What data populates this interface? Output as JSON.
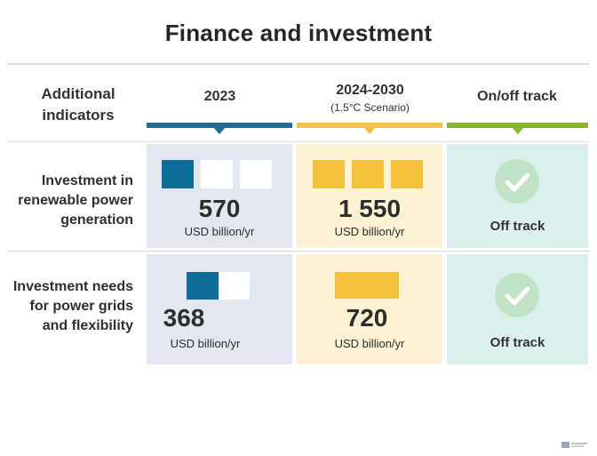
{
  "title": "Finance and investment",
  "headers": {
    "indicators": "Additional indicators",
    "col_2023": "2023",
    "col_2030": "2024-2030",
    "col_2030_sub": "(1.5°C Scenario)",
    "col_track": "On/off track"
  },
  "rows": [
    {
      "label": "Investment in renewable power generation",
      "value_2023": "570",
      "unit_2023": "USD billion/yr",
      "value_2030": "1 550",
      "unit_2030": "USD billion/yr",
      "status": "Off track"
    },
    {
      "label": "Investment needs for power grids and flexibility",
      "value_2023": "368",
      "unit_2023": "USD billion/yr",
      "value_2030": "720",
      "unit_2030": "USD billion/yr",
      "status": "Off track"
    }
  ],
  "icons": [
    "check-circle-icon"
  ],
  "colors": {
    "blue": "#0f6e99",
    "yellow": "#f6c13a",
    "green": "#8bb52f",
    "check": "#c1e3c5"
  }
}
